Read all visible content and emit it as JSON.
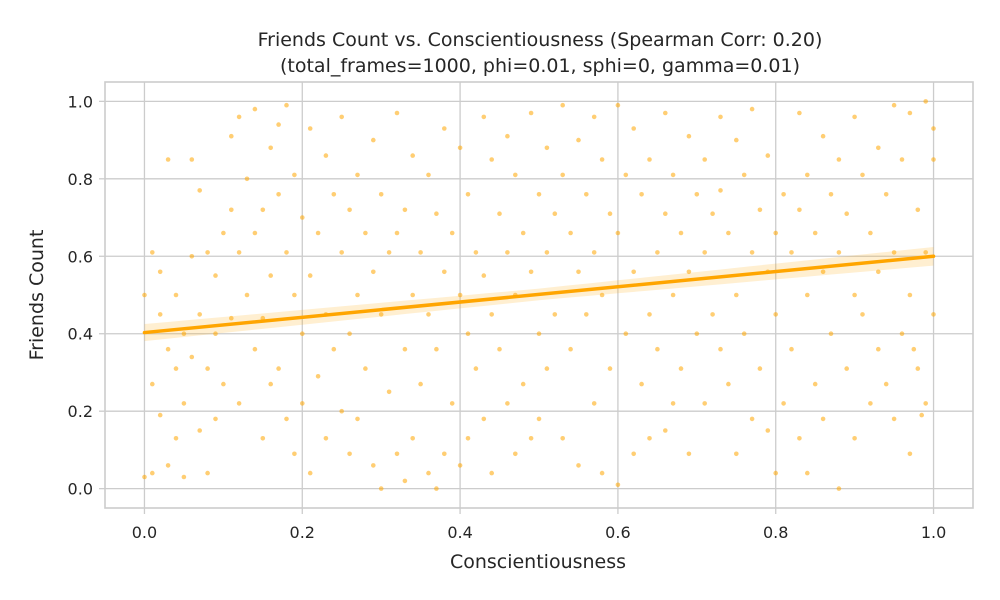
{
  "chart_data": {
    "type": "scatter",
    "title": "Friends Count vs. Conscientiousness (Spearman Corr: 0.20)",
    "subtitle": "(total_frames=1000, phi=0.01, sphi=0, gamma=0.01)",
    "xlabel": "Conscientiousness",
    "ylabel": "Friends Count",
    "xlim": [
      -0.05,
      1.05
    ],
    "ylim": [
      -0.05,
      1.05
    ],
    "xticks": [
      0.0,
      0.2,
      0.4,
      0.6,
      0.8,
      1.0
    ],
    "yticks": [
      0.0,
      0.2,
      0.4,
      0.6,
      0.8,
      1.0
    ],
    "xtick_labels": [
      "0.0",
      "0.2",
      "0.4",
      "0.6",
      "0.8",
      "1.0"
    ],
    "ytick_labels": [
      "0.0",
      "0.2",
      "0.4",
      "0.6",
      "0.8",
      "1.0"
    ],
    "grid": true,
    "point_color": "#FFA500",
    "line_color": "#FFA500",
    "spearman_corr": 0.2,
    "regression": {
      "x": [
        0.0,
        1.0
      ],
      "y": [
        0.403,
        0.6
      ],
      "ci_halfwidth": [
        0.022,
        0.015,
        0.024
      ]
    },
    "points": [
      [
        0.0,
        0.5
      ],
      [
        0.0,
        0.03
      ],
      [
        0.01,
        0.61
      ],
      [
        0.01,
        0.27
      ],
      [
        0.01,
        0.04
      ],
      [
        0.02,
        0.56
      ],
      [
        0.02,
        0.45
      ],
      [
        0.02,
        0.19
      ],
      [
        0.03,
        0.85
      ],
      [
        0.03,
        0.36
      ],
      [
        0.03,
        0.06
      ],
      [
        0.04,
        0.5
      ],
      [
        0.04,
        0.31
      ],
      [
        0.04,
        0.13
      ],
      [
        0.05,
        0.4
      ],
      [
        0.05,
        0.22
      ],
      [
        0.05,
        0.03
      ],
      [
        0.06,
        0.85
      ],
      [
        0.06,
        0.6
      ],
      [
        0.06,
        0.34
      ],
      [
        0.07,
        0.77
      ],
      [
        0.07,
        0.45
      ],
      [
        0.07,
        0.15
      ],
      [
        0.08,
        0.61
      ],
      [
        0.08,
        0.31
      ],
      [
        0.08,
        0.04
      ],
      [
        0.09,
        0.55
      ],
      [
        0.09,
        0.4
      ],
      [
        0.09,
        0.18
      ],
      [
        0.1,
        0.66
      ],
      [
        0.1,
        0.27
      ],
      [
        0.11,
        0.91
      ],
      [
        0.11,
        0.72
      ],
      [
        0.11,
        0.44
      ],
      [
        0.12,
        0.96
      ],
      [
        0.12,
        0.61
      ],
      [
        0.12,
        0.22
      ],
      [
        0.13,
        0.8
      ],
      [
        0.13,
        0.5
      ],
      [
        0.14,
        0.98
      ],
      [
        0.14,
        0.66
      ],
      [
        0.14,
        0.36
      ],
      [
        0.15,
        0.72
      ],
      [
        0.15,
        0.44
      ],
      [
        0.15,
        0.13
      ],
      [
        0.16,
        0.88
      ],
      [
        0.16,
        0.55
      ],
      [
        0.16,
        0.27
      ],
      [
        0.17,
        0.94
      ],
      [
        0.17,
        0.76
      ],
      [
        0.17,
        0.31
      ],
      [
        0.18,
        0.99
      ],
      [
        0.18,
        0.61
      ],
      [
        0.18,
        0.18
      ],
      [
        0.19,
        0.81
      ],
      [
        0.19,
        0.5
      ],
      [
        0.19,
        0.09
      ],
      [
        0.2,
        0.7
      ],
      [
        0.2,
        0.4
      ],
      [
        0.2,
        0.22
      ],
      [
        0.21,
        0.93
      ],
      [
        0.21,
        0.55
      ],
      [
        0.21,
        0.04
      ],
      [
        0.22,
        0.66
      ],
      [
        0.22,
        0.29
      ],
      [
        0.23,
        0.86
      ],
      [
        0.23,
        0.45
      ],
      [
        0.23,
        0.13
      ],
      [
        0.24,
        0.76
      ],
      [
        0.24,
        0.36
      ],
      [
        0.25,
        0.96
      ],
      [
        0.25,
        0.61
      ],
      [
        0.25,
        0.2
      ],
      [
        0.26,
        0.72
      ],
      [
        0.26,
        0.4
      ],
      [
        0.26,
        0.09
      ],
      [
        0.27,
        0.81
      ],
      [
        0.27,
        0.5
      ],
      [
        0.27,
        0.18
      ],
      [
        0.28,
        0.66
      ],
      [
        0.28,
        0.31
      ],
      [
        0.29,
        0.9
      ],
      [
        0.29,
        0.56
      ],
      [
        0.29,
        0.06
      ],
      [
        0.3,
        0.76
      ],
      [
        0.3,
        0.45
      ],
      [
        0.3,
        0.0
      ],
      [
        0.31,
        0.61
      ],
      [
        0.31,
        0.25
      ],
      [
        0.32,
        0.97
      ],
      [
        0.32,
        0.66
      ],
      [
        0.32,
        0.09
      ],
      [
        0.33,
        0.72
      ],
      [
        0.33,
        0.36
      ],
      [
        0.33,
        0.02
      ],
      [
        0.34,
        0.86
      ],
      [
        0.34,
        0.5
      ],
      [
        0.34,
        0.13
      ],
      [
        0.35,
        0.61
      ],
      [
        0.35,
        0.27
      ],
      [
        0.36,
        0.81
      ],
      [
        0.36,
        0.45
      ],
      [
        0.36,
        0.04
      ],
      [
        0.37,
        0.71
      ],
      [
        0.37,
        0.36
      ],
      [
        0.37,
        0.0
      ],
      [
        0.38,
        0.93
      ],
      [
        0.38,
        0.56
      ],
      [
        0.38,
        0.09
      ],
      [
        0.39,
        0.66
      ],
      [
        0.39,
        0.22
      ],
      [
        0.4,
        0.88
      ],
      [
        0.4,
        0.5
      ],
      [
        0.4,
        0.06
      ],
      [
        0.41,
        0.76
      ],
      [
        0.41,
        0.4
      ],
      [
        0.41,
        0.13
      ],
      [
        0.42,
        0.61
      ],
      [
        0.42,
        0.31
      ],
      [
        0.43,
        0.96
      ],
      [
        0.43,
        0.55
      ],
      [
        0.43,
        0.18
      ],
      [
        0.44,
        0.85
      ],
      [
        0.44,
        0.45
      ],
      [
        0.44,
        0.04
      ],
      [
        0.45,
        0.71
      ],
      [
        0.45,
        0.36
      ],
      [
        0.46,
        0.91
      ],
      [
        0.46,
        0.61
      ],
      [
        0.46,
        0.22
      ],
      [
        0.47,
        0.81
      ],
      [
        0.47,
        0.5
      ],
      [
        0.47,
        0.09
      ],
      [
        0.48,
        0.66
      ],
      [
        0.48,
        0.27
      ],
      [
        0.49,
        0.97
      ],
      [
        0.49,
        0.56
      ],
      [
        0.49,
        0.13
      ],
      [
        0.5,
        0.76
      ],
      [
        0.5,
        0.4
      ],
      [
        0.5,
        0.18
      ],
      [
        0.51,
        0.88
      ],
      [
        0.51,
        0.61
      ],
      [
        0.51,
        0.31
      ],
      [
        0.52,
        0.71
      ],
      [
        0.52,
        0.45
      ],
      [
        0.53,
        0.99
      ],
      [
        0.53,
        0.81
      ],
      [
        0.53,
        0.13
      ],
      [
        0.54,
        0.66
      ],
      [
        0.54,
        0.36
      ],
      [
        0.55,
        0.9
      ],
      [
        0.55,
        0.56
      ],
      [
        0.55,
        0.06
      ],
      [
        0.56,
        0.76
      ],
      [
        0.56,
        0.45
      ],
      [
        0.57,
        0.96
      ],
      [
        0.57,
        0.61
      ],
      [
        0.57,
        0.22
      ],
      [
        0.58,
        0.85
      ],
      [
        0.58,
        0.5
      ],
      [
        0.58,
        0.04
      ],
      [
        0.59,
        0.71
      ],
      [
        0.59,
        0.31
      ],
      [
        0.6,
        0.99
      ],
      [
        0.6,
        0.66
      ],
      [
        0.6,
        0.01
      ],
      [
        0.61,
        0.81
      ],
      [
        0.61,
        0.4
      ],
      [
        0.62,
        0.93
      ],
      [
        0.62,
        0.56
      ],
      [
        0.62,
        0.09
      ],
      [
        0.63,
        0.76
      ],
      [
        0.63,
        0.27
      ],
      [
        0.64,
        0.85
      ],
      [
        0.64,
        0.45
      ],
      [
        0.64,
        0.13
      ],
      [
        0.65,
        0.61
      ],
      [
        0.65,
        0.36
      ],
      [
        0.66,
        0.97
      ],
      [
        0.66,
        0.71
      ],
      [
        0.66,
        0.15
      ],
      [
        0.67,
        0.81
      ],
      [
        0.67,
        0.5
      ],
      [
        0.67,
        0.22
      ],
      [
        0.68,
        0.66
      ],
      [
        0.68,
        0.31
      ],
      [
        0.69,
        0.91
      ],
      [
        0.69,
        0.56
      ],
      [
        0.69,
        0.09
      ],
      [
        0.7,
        0.76
      ],
      [
        0.7,
        0.4
      ],
      [
        0.71,
        0.85
      ],
      [
        0.71,
        0.61
      ],
      [
        0.71,
        0.22
      ],
      [
        0.72,
        0.71
      ],
      [
        0.72,
        0.45
      ],
      [
        0.73,
        0.96
      ],
      [
        0.73,
        0.77
      ],
      [
        0.73,
        0.36
      ],
      [
        0.74,
        0.66
      ],
      [
        0.74,
        0.27
      ],
      [
        0.75,
        0.9
      ],
      [
        0.75,
        0.5
      ],
      [
        0.75,
        0.09
      ],
      [
        0.76,
        0.81
      ],
      [
        0.76,
        0.4
      ],
      [
        0.77,
        0.98
      ],
      [
        0.77,
        0.61
      ],
      [
        0.77,
        0.18
      ],
      [
        0.78,
        0.72
      ],
      [
        0.78,
        0.31
      ],
      [
        0.79,
        0.86
      ],
      [
        0.79,
        0.56
      ],
      [
        0.79,
        0.15
      ],
      [
        0.8,
        0.66
      ],
      [
        0.8,
        0.45
      ],
      [
        0.8,
        0.04
      ],
      [
        0.81,
        0.76
      ],
      [
        0.81,
        0.22
      ],
      [
        0.82,
        0.61
      ],
      [
        0.82,
        0.36
      ],
      [
        0.83,
        0.97
      ],
      [
        0.83,
        0.72
      ],
      [
        0.83,
        0.13
      ],
      [
        0.84,
        0.81
      ],
      [
        0.84,
        0.5
      ],
      [
        0.84,
        0.04
      ],
      [
        0.85,
        0.66
      ],
      [
        0.85,
        0.27
      ],
      [
        0.86,
        0.91
      ],
      [
        0.86,
        0.56
      ],
      [
        0.86,
        0.18
      ],
      [
        0.87,
        0.76
      ],
      [
        0.87,
        0.4
      ],
      [
        0.88,
        0.85
      ],
      [
        0.88,
        0.61
      ],
      [
        0.88,
        0.0
      ],
      [
        0.89,
        0.71
      ],
      [
        0.89,
        0.31
      ],
      [
        0.9,
        0.96
      ],
      [
        0.9,
        0.5
      ],
      [
        0.9,
        0.13
      ],
      [
        0.91,
        0.81
      ],
      [
        0.91,
        0.45
      ],
      [
        0.92,
        0.66
      ],
      [
        0.92,
        0.22
      ],
      [
        0.93,
        0.88
      ],
      [
        0.93,
        0.56
      ],
      [
        0.93,
        0.36
      ],
      [
        0.94,
        0.76
      ],
      [
        0.94,
        0.27
      ],
      [
        0.95,
        0.99
      ],
      [
        0.95,
        0.61
      ],
      [
        0.95,
        0.18
      ],
      [
        0.96,
        0.85
      ],
      [
        0.96,
        0.4
      ],
      [
        0.97,
        0.97
      ],
      [
        0.97,
        0.5
      ],
      [
        0.97,
        0.09
      ],
      [
        0.98,
        0.72
      ],
      [
        0.98,
        0.31
      ],
      [
        0.99,
        1.0
      ],
      [
        0.99,
        0.61
      ],
      [
        0.99,
        0.22
      ],
      [
        1.0,
        0.85
      ],
      [
        1.0,
        0.45
      ],
      [
        1.0,
        0.93
      ],
      [
        0.985,
        0.19
      ],
      [
        0.975,
        0.36
      ]
    ]
  }
}
